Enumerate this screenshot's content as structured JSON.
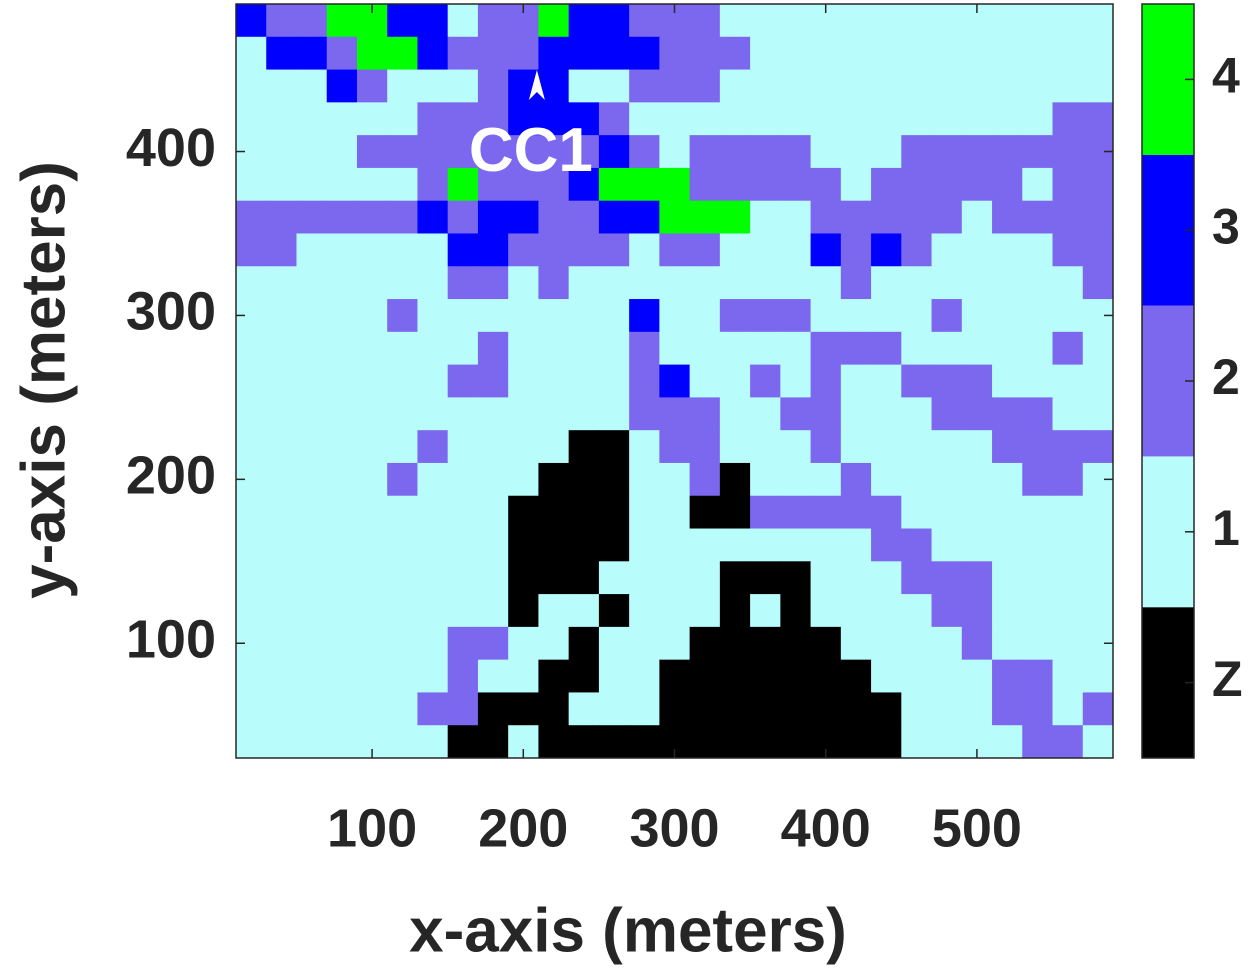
{
  "chart_data": {
    "type": "heatmap",
    "xlabel": "x-axis (meters)",
    "ylabel": "y-axis (meters)",
    "x": [
      20,
      40,
      60,
      80,
      100,
      120,
      140,
      160,
      180,
      200,
      220,
      240,
      260,
      280,
      300,
      320,
      340,
      360,
      380,
      400,
      420,
      440,
      460,
      480,
      500,
      520,
      540,
      560,
      580
    ],
    "y": [
      480,
      460,
      440,
      420,
      400,
      380,
      360,
      340,
      320,
      300,
      280,
      260,
      240,
      220,
      200,
      180,
      160,
      140,
      120,
      100,
      80,
      60,
      40
    ],
    "z": [
      [
        3,
        2,
        2,
        4,
        4,
        3,
        3,
        1,
        2,
        2,
        4,
        3,
        3,
        2,
        2,
        2,
        1,
        1,
        1,
        1,
        1,
        1,
        1,
        1,
        1,
        1,
        1,
        1,
        1
      ],
      [
        1,
        3,
        3,
        2,
        4,
        4,
        3,
        2,
        2,
        2,
        3,
        3,
        3,
        3,
        2,
        2,
        2,
        1,
        1,
        1,
        1,
        1,
        1,
        1,
        1,
        1,
        1,
        1,
        1
      ],
      [
        1,
        1,
        1,
        3,
        2,
        1,
        1,
        1,
        2,
        3,
        3,
        1,
        1,
        2,
        2,
        2,
        1,
        1,
        1,
        1,
        1,
        1,
        1,
        1,
        1,
        1,
        1,
        1,
        1
      ],
      [
        1,
        1,
        1,
        1,
        1,
        1,
        2,
        2,
        2,
        3,
        3,
        3,
        2,
        1,
        1,
        1,
        1,
        1,
        1,
        1,
        1,
        1,
        1,
        1,
        1,
        1,
        1,
        2,
        2
      ],
      [
        1,
        1,
        1,
        1,
        2,
        2,
        2,
        2,
        2,
        2,
        2,
        2,
        3,
        2,
        1,
        2,
        2,
        2,
        2,
        1,
        1,
        1,
        2,
        2,
        2,
        2,
        2,
        2,
        2
      ],
      [
        1,
        1,
        1,
        1,
        1,
        1,
        2,
        4,
        2,
        2,
        2,
        3,
        4,
        4,
        4,
        2,
        2,
        2,
        2,
        2,
        1,
        2,
        2,
        2,
        2,
        2,
        1,
        2,
        2
      ],
      [
        2,
        2,
        2,
        2,
        2,
        2,
        3,
        2,
        3,
        3,
        2,
        2,
        3,
        3,
        4,
        4,
        4,
        1,
        1,
        2,
        2,
        2,
        2,
        2,
        1,
        2,
        2,
        2,
        2
      ],
      [
        2,
        2,
        1,
        1,
        1,
        1,
        1,
        3,
        3,
        2,
        2,
        2,
        2,
        1,
        2,
        2,
        1,
        1,
        1,
        3,
        2,
        3,
        2,
        1,
        1,
        1,
        1,
        2,
        2
      ],
      [
        1,
        1,
        1,
        1,
        1,
        1,
        1,
        2,
        2,
        1,
        2,
        1,
        1,
        1,
        1,
        1,
        1,
        1,
        1,
        1,
        2,
        1,
        1,
        1,
        1,
        1,
        1,
        1,
        2
      ],
      [
        1,
        1,
        1,
        1,
        1,
        2,
        1,
        1,
        1,
        1,
        1,
        1,
        1,
        3,
        1,
        1,
        2,
        2,
        2,
        1,
        1,
        1,
        1,
        2,
        1,
        1,
        1,
        1,
        1
      ],
      [
        1,
        1,
        1,
        1,
        1,
        1,
        1,
        1,
        2,
        1,
        1,
        1,
        1,
        2,
        1,
        1,
        1,
        1,
        1,
        2,
        2,
        2,
        1,
        1,
        1,
        1,
        1,
        2,
        1
      ],
      [
        1,
        1,
        1,
        1,
        1,
        1,
        1,
        2,
        2,
        1,
        1,
        1,
        1,
        2,
        3,
        1,
        1,
        2,
        1,
        2,
        1,
        1,
        2,
        2,
        2,
        1,
        1,
        1,
        1
      ],
      [
        1,
        1,
        1,
        1,
        1,
        1,
        1,
        1,
        1,
        1,
        1,
        1,
        1,
        2,
        2,
        2,
        1,
        1,
        2,
        2,
        1,
        1,
        1,
        2,
        2,
        2,
        2,
        1,
        1
      ],
      [
        1,
        1,
        1,
        1,
        1,
        1,
        2,
        1,
        1,
        1,
        1,
        0,
        0,
        1,
        2,
        2,
        1,
        1,
        1,
        2,
        1,
        1,
        1,
        1,
        1,
        2,
        2,
        2,
        2
      ],
      [
        1,
        1,
        1,
        1,
        1,
        2,
        1,
        1,
        1,
        1,
        0,
        0,
        0,
        1,
        1,
        2,
        0,
        1,
        1,
        1,
        2,
        1,
        1,
        1,
        1,
        1,
        2,
        2,
        1
      ],
      [
        1,
        1,
        1,
        1,
        1,
        1,
        1,
        1,
        1,
        0,
        0,
        0,
        0,
        1,
        1,
        0,
        0,
        2,
        2,
        2,
        2,
        2,
        1,
        1,
        1,
        1,
        1,
        1,
        1
      ],
      [
        1,
        1,
        1,
        1,
        1,
        1,
        1,
        1,
        1,
        0,
        0,
        0,
        0,
        1,
        1,
        1,
        1,
        1,
        1,
        1,
        1,
        2,
        2,
        1,
        1,
        1,
        1,
        1,
        1
      ],
      [
        1,
        1,
        1,
        1,
        1,
        1,
        1,
        1,
        1,
        0,
        0,
        0,
        1,
        1,
        1,
        1,
        0,
        0,
        0,
        1,
        1,
        1,
        2,
        2,
        2,
        1,
        1,
        1,
        1
      ],
      [
        1,
        1,
        1,
        1,
        1,
        1,
        1,
        1,
        1,
        0,
        1,
        1,
        0,
        1,
        1,
        1,
        0,
        1,
        0,
        1,
        1,
        1,
        1,
        2,
        2,
        1,
        1,
        1,
        1
      ],
      [
        1,
        1,
        1,
        1,
        1,
        1,
        1,
        2,
        2,
        1,
        1,
        0,
        1,
        1,
        1,
        0,
        0,
        0,
        0,
        0,
        1,
        1,
        1,
        1,
        2,
        1,
        1,
        1,
        1
      ],
      [
        1,
        1,
        1,
        1,
        1,
        1,
        1,
        2,
        1,
        1,
        0,
        0,
        1,
        1,
        0,
        0,
        0,
        0,
        0,
        0,
        0,
        1,
        1,
        1,
        1,
        2,
        2,
        1,
        1
      ],
      [
        1,
        1,
        1,
        1,
        1,
        1,
        2,
        2,
        0,
        0,
        0,
        1,
        1,
        1,
        0,
        0,
        0,
        0,
        0,
        0,
        0,
        0,
        1,
        1,
        1,
        2,
        2,
        1,
        2
      ],
      [
        1,
        1,
        1,
        1,
        1,
        1,
        1,
        0,
        0,
        1,
        0,
        0,
        0,
        0,
        0,
        0,
        0,
        0,
        0,
        0,
        0,
        0,
        1,
        1,
        1,
        1,
        2,
        2,
        1
      ]
    ],
    "xlim": [
      10,
      590
    ],
    "ylim": [
      30,
      490
    ],
    "xticks": [
      100,
      200,
      300,
      400,
      500
    ],
    "yticks": [
      100,
      200,
      300,
      400
    ],
    "colorbar": {
      "colors": [
        "#000000",
        "#b9fcfc",
        "#7b68ee",
        "#0000ff",
        "#00ff00"
      ],
      "lim": [
        -0.5,
        4.5
      ],
      "ticks": [
        {
          "value": 0,
          "label": "Z"
        },
        1,
        2,
        3,
        4
      ]
    },
    "annotation": {
      "text": "CC1",
      "x": 205,
      "y": 398,
      "arrow_x": 209,
      "arrow_y": 440,
      "color": "#ffffff"
    }
  }
}
